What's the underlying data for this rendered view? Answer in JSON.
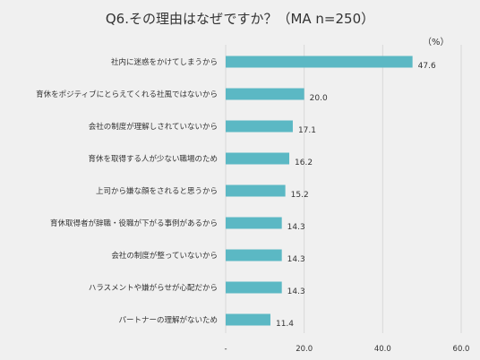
{
  "title": "Q6.その理由はなぜですか？（MA n=250）",
  "unit_label": "（%）",
  "colors": {
    "bar": "#5bb8c4",
    "background": "#f0f0f0",
    "grid": "#d9d9d9",
    "text": "#333333"
  },
  "chart_data": {
    "type": "bar",
    "orientation": "horizontal",
    "categories": [
      "社内に迷惑をかけてしまうから",
      "育休をポジティブにとらえてくれる社風ではないから",
      "会社の制度が理解しされていないから",
      "育休を取得する人が少ない職場のため",
      "上司から嫌な顔をされると思うから",
      "育休取得者が辞職・役職が下がる事例があるから",
      "会社の制度が整っていないから",
      "ハラスメントや嫌がらせが心配だから",
      "パートナーの理解がないため"
    ],
    "values": [
      47.6,
      20.0,
      17.1,
      16.2,
      15.2,
      14.3,
      14.3,
      14.3,
      11.4
    ],
    "value_labels": [
      "47.6",
      "20.0",
      "17.1",
      "16.2",
      "15.2",
      "14.3",
      "14.3",
      "14.3",
      "11.4"
    ],
    "xlim": [
      0,
      60
    ],
    "x_ticks": [
      "-",
      "20.0",
      "40.0",
      "60.0"
    ],
    "grid": true,
    "legend": "none"
  }
}
